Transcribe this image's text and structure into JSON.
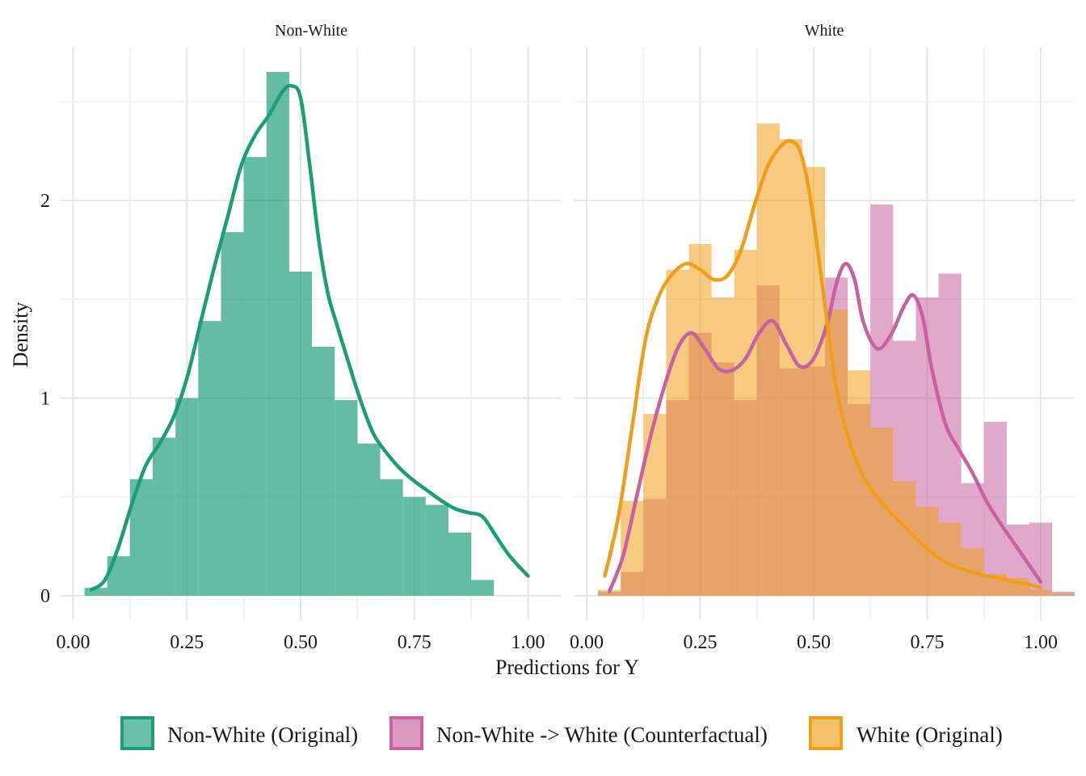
{
  "chart_data": {
    "type": "histogram_density_faceted",
    "xlabel": "Predictions for Y",
    "ylabel": "Density",
    "xlim": [
      0,
      1
    ],
    "ylim": [
      0,
      2.6
    ],
    "x_ticks": [
      "0.00",
      "0.25",
      "0.50",
      "0.75",
      "1.00"
    ],
    "y_ticks": [
      "0",
      "1",
      "2"
    ],
    "grid": true,
    "legend_position": "bottom",
    "bin_width": 0.05,
    "facets": [
      {
        "title": "Non-White",
        "series": [
          {
            "name": "Non-White (Original)",
            "color": "#1B9E77",
            "bar_start": 0.025,
            "bar_heights": [
              0.04,
              0.2,
              0.59,
              0.8,
              1.0,
              1.39,
              1.84,
              2.22,
              2.65,
              1.64,
              1.26,
              0.99,
              0.77,
              0.59,
              0.5,
              0.46,
              0.32,
              0.08
            ],
            "density_x": [
              0.04,
              0.07,
              0.1,
              0.13,
              0.16,
              0.19,
              0.22,
              0.25,
              0.28,
              0.31,
              0.34,
              0.37,
              0.4,
              0.43,
              0.46,
              0.48,
              0.5,
              0.52,
              0.54,
              0.56,
              0.58,
              0.6,
              0.63,
              0.66,
              0.69,
              0.72,
              0.75,
              0.78,
              0.81,
              0.84,
              0.87,
              0.9,
              0.93,
              0.96,
              1.0
            ],
            "density_y": [
              0.03,
              0.08,
              0.25,
              0.47,
              0.66,
              0.77,
              0.9,
              1.1,
              1.38,
              1.66,
              1.92,
              2.18,
              2.33,
              2.43,
              2.55,
              2.58,
              2.52,
              2.18,
              1.8,
              1.53,
              1.37,
              1.22,
              1.0,
              0.82,
              0.72,
              0.64,
              0.58,
              0.53,
              0.48,
              0.44,
              0.42,
              0.4,
              0.3,
              0.2,
              0.1
            ]
          }
        ]
      },
      {
        "title": "White",
        "series": [
          {
            "name": "Non-White -> White (Counterfactual)",
            "color": "#C7619F",
            "bar_start": 0.025,
            "bar_heights": [
              0.02,
              0.12,
              0.49,
              0.99,
              1.33,
              1.18,
              0.99,
              1.57,
              1.15,
              1.16,
              1.61,
              0.97,
              1.98,
              1.29,
              1.51,
              1.63,
              0.57,
              0.88,
              0.36,
              0.37,
              0.02
            ],
            "density_x": [
              0.05,
              0.08,
              0.11,
              0.14,
              0.17,
              0.2,
              0.23,
              0.26,
              0.29,
              0.32,
              0.35,
              0.38,
              0.41,
              0.44,
              0.47,
              0.5,
              0.53,
              0.55,
              0.57,
              0.59,
              0.61,
              0.64,
              0.67,
              0.7,
              0.72,
              0.74,
              0.76,
              0.79,
              0.82,
              0.85,
              0.88,
              0.91,
              0.94,
              0.97,
              1.0
            ],
            "density_y": [
              0.02,
              0.2,
              0.5,
              0.8,
              1.05,
              1.25,
              1.33,
              1.25,
              1.15,
              1.14,
              1.2,
              1.33,
              1.39,
              1.27,
              1.16,
              1.2,
              1.38,
              1.58,
              1.68,
              1.6,
              1.38,
              1.25,
              1.32,
              1.47,
              1.52,
              1.41,
              1.15,
              0.87,
              0.74,
              0.62,
              0.48,
              0.37,
              0.27,
              0.17,
              0.07
            ]
          },
          {
            "name": "White (Original)",
            "color": "#EE9F1A",
            "bar_start": 0.025,
            "bar_heights": [
              0.03,
              0.48,
              0.92,
              1.65,
              1.78,
              1.51,
              1.75,
              2.39,
              2.31,
              2.17,
              1.45,
              1.14,
              0.85,
              0.58,
              0.45,
              0.37,
              0.24,
              0.11,
              0.09,
              0.03,
              0.01
            ],
            "density_x": [
              0.04,
              0.07,
              0.1,
              0.13,
              0.16,
              0.19,
              0.22,
              0.25,
              0.28,
              0.31,
              0.34,
              0.37,
              0.4,
              0.43,
              0.45,
              0.47,
              0.49,
              0.51,
              0.53,
              0.55,
              0.58,
              0.61,
              0.64,
              0.67,
              0.7,
              0.73,
              0.76,
              0.79,
              0.82,
              0.85,
              0.88,
              0.91,
              0.94,
              0.97,
              1.0
            ],
            "density_y": [
              0.1,
              0.4,
              0.85,
              1.3,
              1.52,
              1.63,
              1.68,
              1.65,
              1.6,
              1.62,
              1.75,
              1.98,
              2.18,
              2.28,
              2.3,
              2.25,
              2.05,
              1.73,
              1.38,
              1.05,
              0.77,
              0.6,
              0.5,
              0.42,
              0.35,
              0.28,
              0.22,
              0.17,
              0.14,
              0.12,
              0.1,
              0.09,
              0.07,
              0.06,
              0.04
            ]
          }
        ]
      }
    ],
    "legend": [
      {
        "label": "Non-White (Original)",
        "color": "#1B9E77"
      },
      {
        "label": "Non-White -> White (Counterfactual)",
        "color": "#C7619F"
      },
      {
        "label": "White (Original)",
        "color": "#EE9F1A"
      }
    ]
  }
}
